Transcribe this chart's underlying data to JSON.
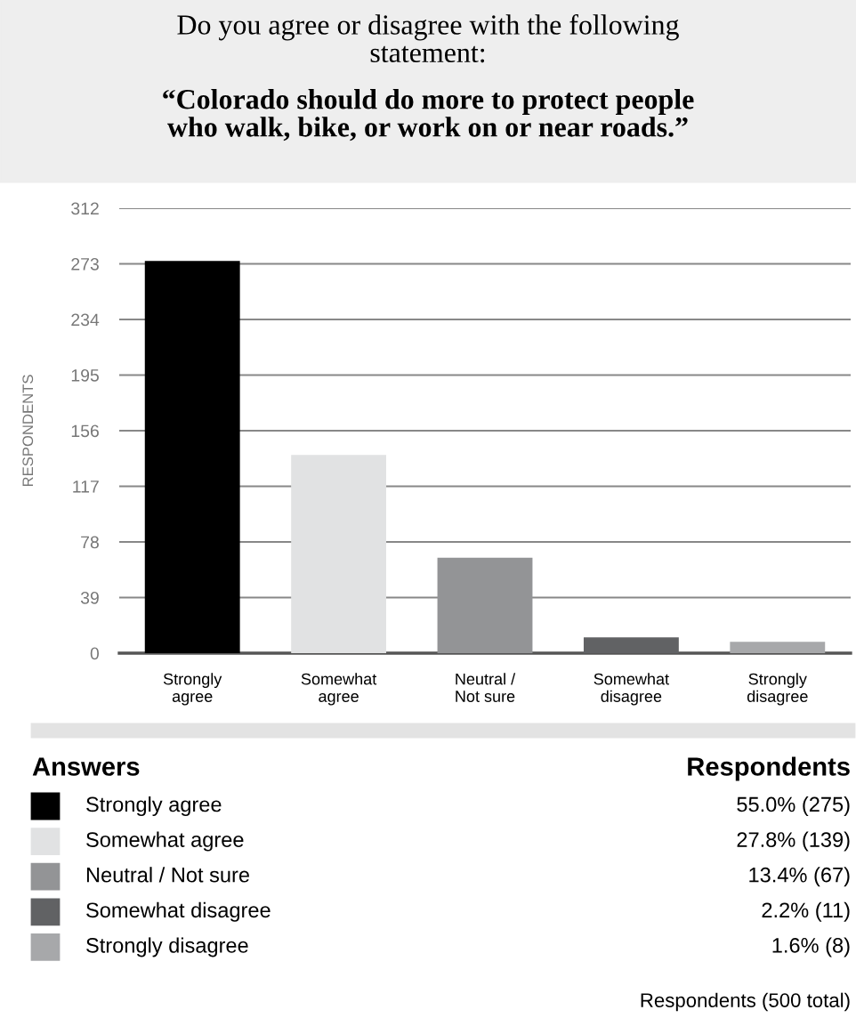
{
  "chart_data": {
    "type": "bar",
    "title": "Do you agree or disagree with the following\nstatement:",
    "subtitle": "“Colorado should do more to protect people\nwho walk, bike, or work on or near roads.”",
    "ylabel": "RESPONDENTS",
    "categories": [
      "Strongly\nagree",
      "Somewhat\nagree",
      "Neutral /\nNot sure",
      "Somewhat\ndisagree",
      "Strongly\ndisagree"
    ],
    "values": [
      275,
      139,
      67,
      11,
      8
    ],
    "colors": [
      "#000000",
      "#e1e2e3",
      "#939496",
      "#616264",
      "#a7a8aa"
    ],
    "ylim": [
      0,
      312
    ],
    "yticks": [
      0,
      39,
      78,
      117,
      156,
      195,
      234,
      273,
      312
    ],
    "grid": "y",
    "legend_title": "Answers",
    "annotations": [
      "Respondents",
      "55.0% (275)",
      "27.8% (139)",
      "13.4% (67)",
      "2.2% (11)",
      "1.6% (8)",
      "Respondents (500 total)"
    ]
  }
}
